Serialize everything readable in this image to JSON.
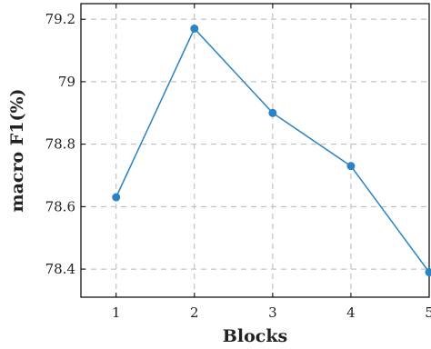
{
  "chart_data": {
    "type": "line",
    "title": "",
    "xlabel": "Blocks",
    "ylabel": "macro F1(%)",
    "x": [
      1,
      2,
      3,
      4,
      5
    ],
    "x_tick_labels": [
      "1",
      "2",
      "3",
      "4",
      "5"
    ],
    "xlim": [
      0.55,
      5.0
    ],
    "ylim": [
      78.31,
      79.25
    ],
    "y_ticks": [
      78.4,
      78.6,
      78.8,
      79.0,
      79.2
    ],
    "y_tick_labels": [
      "78.4",
      "78.6",
      "78.8",
      "79",
      "79.2"
    ],
    "grid": true,
    "series": [
      {
        "values": [
          78.63,
          79.17,
          78.9,
          78.73,
          78.39
        ],
        "color": "#2b83c3",
        "marker": "circle"
      }
    ]
  }
}
